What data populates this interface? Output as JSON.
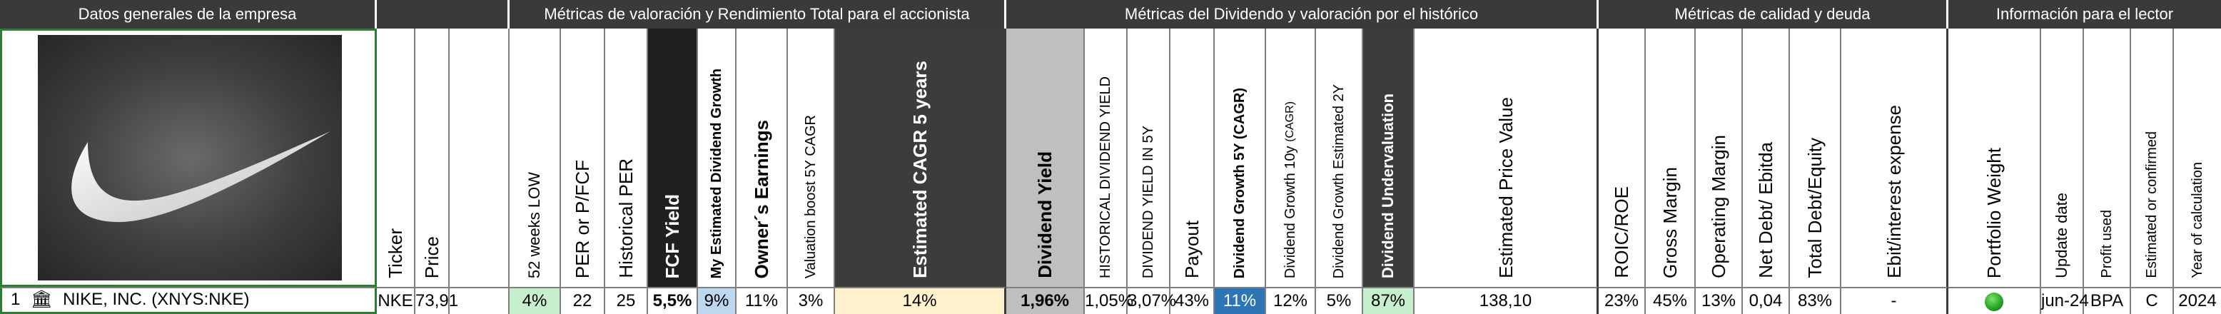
{
  "groups": {
    "g1": "Datos generales de la empresa",
    "g2": "Métricas de valoración y Rendimiento Total para el accionista",
    "g3": "Métricas del Dividendo y valoración por el histórico",
    "g4": "Métricas de calidad y deuda",
    "g5": "Información para el lector"
  },
  "headers": {
    "ticker": "Ticker",
    "price": "Price",
    "low52": "52 weeks LOW",
    "per": "PER or P/FCF",
    "hper": "Historical PER",
    "fcf": "FCF Yield",
    "myest": "My Estimated Dividend Growth",
    "owners": "Owner´s Earnings",
    "boost": "Valuation boost 5Y CAGR",
    "cagr5": "Estimated CAGR 5 years",
    "divy": "Dividend Yield",
    "hdivy": "HISTORICAL DIVIDEND YIELD",
    "divy5": "DIVIDEND YIELD IN 5Y",
    "payout": "Payout",
    "dg5": "Dividend Growth 5Y (CAGR)",
    "dg10": "Dividend Growth 10y",
    "dg10_sub": "(CAGR)",
    "dg2": "Dividend Growth Estimated 2Y",
    "under": "Dividend Undervaluation",
    "epv": "Estimated Price Value",
    "roic": "ROIC/ROE",
    "gross": "Gross Margin",
    "opm": "Operating Margin",
    "netdebt": "Net Debt/ Ebitda",
    "tde": "Total Debt/Equity",
    "ebit": "Ebit/interest expense",
    "portfolio": "Portfolio Weight",
    "update": "Update date",
    "profit": "Profit used",
    "estconf": "Estimated or confirmed",
    "year": "Year of calculation"
  },
  "row": {
    "index": "1",
    "company": "NIKE, INC. (XNYS:NKE)",
    "ticker": "NKE",
    "price": "73,91",
    "low52": "4%",
    "per": "22",
    "hper": "25",
    "fcf": "5,5%",
    "myest": "9%",
    "owners": "11%",
    "boost": "3%",
    "cagr5": "14%",
    "divy": "1,96%",
    "hdivy": "1,05%",
    "divy5": "3,07%",
    "payout": "43%",
    "dg5": "11%",
    "dg10": "12%",
    "dg2": "5%",
    "under": "87%",
    "epv": "138,10",
    "roic": "23%",
    "gross": "45%",
    "opm": "13%",
    "netdebt": "0,04",
    "tde": "83%",
    "ebit": "-",
    "update": "jun-24",
    "profit": "BPA",
    "estconf": "C",
    "year": "2024"
  },
  "colors": {
    "low52_bg": "#c6efce",
    "myest_bg": "#bdd7ee",
    "cagr5_bg": "#fff2cc",
    "divy_bg": "#bfbfbf",
    "dg5_bg": "#2e75b6",
    "under_bg": "#c6efce",
    "status_dot": "#22a020",
    "header_dark": "#3a3a3a"
  }
}
